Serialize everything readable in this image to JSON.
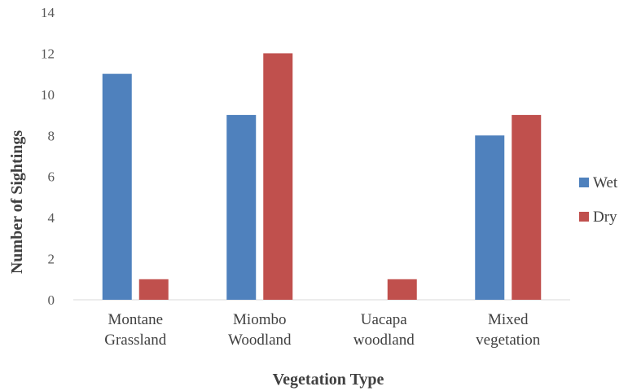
{
  "chart_data": {
    "type": "bar",
    "categories": [
      [
        "Montane",
        "Grassland"
      ],
      [
        "Miombo",
        "Woodland"
      ],
      [
        "Uacapa",
        "woodland"
      ],
      [
        "Mixed",
        "vegetation"
      ]
    ],
    "series": [
      {
        "name": "Wet",
        "values": [
          11,
          9,
          0,
          8
        ],
        "color": "#4F81BD"
      },
      {
        "name": "Dry",
        "values": [
          1,
          12,
          1,
          9
        ],
        "color": "#C0504D"
      }
    ],
    "title": "",
    "xlabel": "Vegetation Type",
    "ylabel": "Number of Sightings",
    "ylim": [
      0,
      14
    ],
    "yticks": [
      0,
      2,
      4,
      6,
      8,
      10,
      12,
      14
    ],
    "grid": false,
    "legend_position": "right"
  }
}
